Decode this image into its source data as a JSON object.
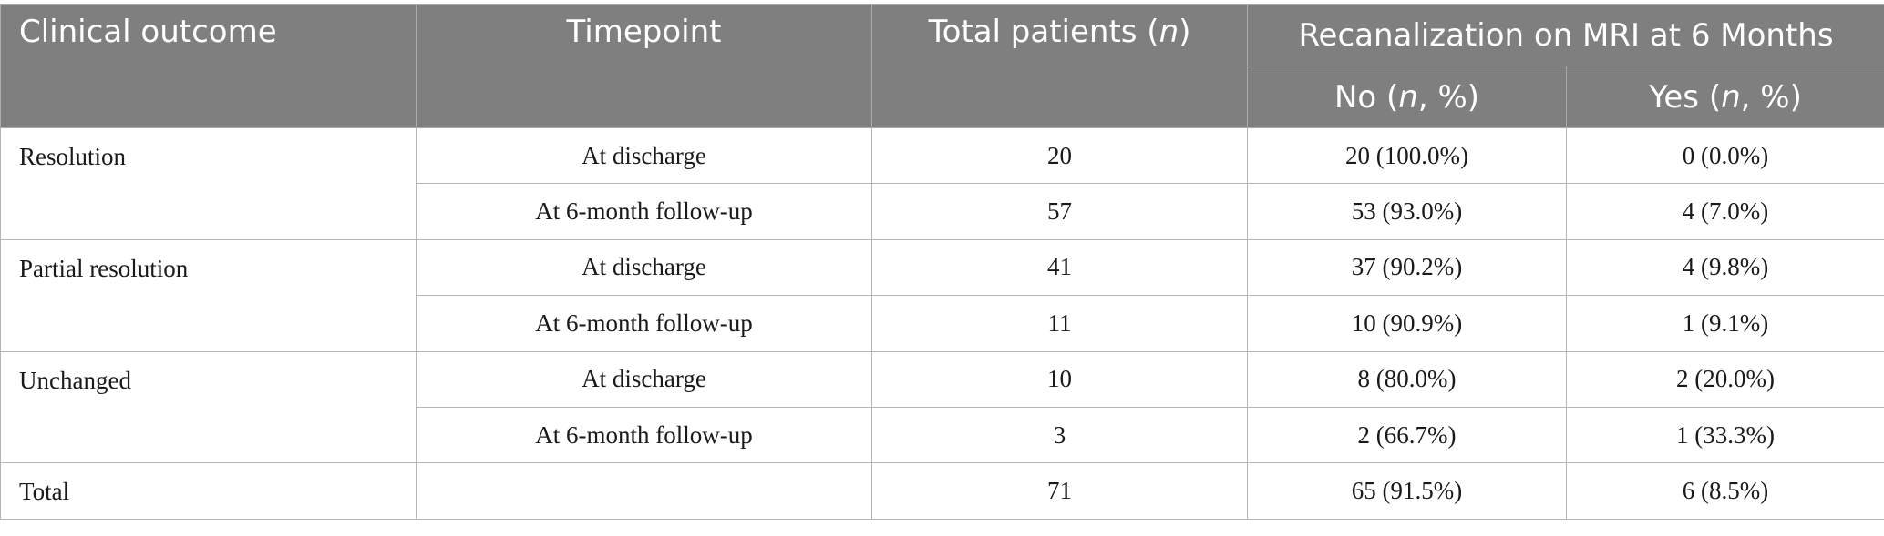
{
  "table": {
    "headers": {
      "clinical_outcome": "Clinical outcome",
      "timepoint": "Timepoint",
      "total_patients_prefix": "Total patients (",
      "total_patients_n": "n",
      "total_patients_suffix": ")",
      "recanalization": "Recanalization on MRI at 6 Months",
      "no_prefix": "No (",
      "no_n": "n",
      "no_suffix": ", %)",
      "yes_prefix": "Yes (",
      "yes_n": "n",
      "yes_suffix": ", %)"
    },
    "rows": [
      {
        "outcome": "Resolution",
        "timepoint": "At discharge",
        "total": "20",
        "no": "20 (100.0%)",
        "yes": "0 (0.0%)"
      },
      {
        "outcome": "",
        "timepoint": "At 6-month follow-up",
        "total": "57",
        "no": "53 (93.0%)",
        "yes": "4 (7.0%)"
      },
      {
        "outcome": "Partial resolution",
        "timepoint": "At discharge",
        "total": "41",
        "no": "37 (90.2%)",
        "yes": "4 (9.8%)"
      },
      {
        "outcome": "",
        "timepoint": "At 6-month follow-up",
        "total": "11",
        "no": "10 (90.9%)",
        "yes": "1 (9.1%)"
      },
      {
        "outcome": "Unchanged",
        "timepoint": "At discharge",
        "total": "10",
        "no": "8 (80.0%)",
        "yes": "2 (20.0%)"
      },
      {
        "outcome": "",
        "timepoint": "At 6-month follow-up",
        "total": "3",
        "no": "2 (66.7%)",
        "yes": "1 (33.3%)"
      },
      {
        "outcome": "Total",
        "timepoint": "",
        "total": "71",
        "no": "65 (91.5%)",
        "yes": "6 (8.5%)"
      }
    ]
  }
}
